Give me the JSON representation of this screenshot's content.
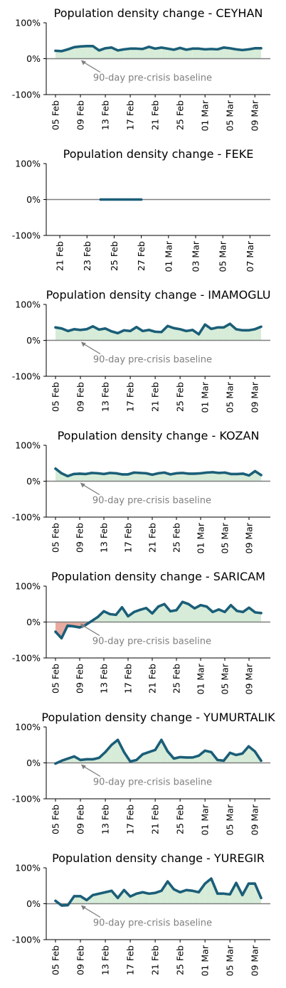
{
  "chart_data": [
    {
      "type": "area",
      "title": "Population density change - CEYHAN",
      "ylim": [
        -100,
        100
      ],
      "yticks": [
        "100%",
        "0%",
        "-100%"
      ],
      "xticks": [
        "05 Feb",
        "09 Feb",
        "13 Feb",
        "17 Feb",
        "21 Feb",
        "25 Feb",
        "01 Mar",
        "05 Mar",
        "09 Mar"
      ],
      "annotation": "90-day pre-crisis baseline",
      "x_start": "2023-02-05",
      "values": [
        22,
        21,
        26,
        32,
        34,
        35,
        35,
        23,
        29,
        31,
        23,
        26,
        28,
        28,
        27,
        33,
        28,
        31,
        28,
        25,
        30,
        25,
        28,
        28,
        26,
        27,
        26,
        31,
        29,
        26,
        24,
        26,
        29,
        29
      ]
    },
    {
      "type": "area",
      "title": "Population density change - FEKE",
      "ylim": [
        -100,
        100
      ],
      "yticks": [
        "100%",
        "0%",
        "-100%"
      ],
      "xticks": [
        "21 Feb",
        "23 Feb",
        "25 Feb",
        "27 Feb",
        "01 Mar",
        "03 Mar",
        "05 Mar",
        "07 Mar"
      ],
      "x_start": "2023-02-24",
      "values": [
        0,
        0,
        0,
        0
      ]
    },
    {
      "type": "area",
      "title": "Population density change - IMAMOGLU",
      "ylim": [
        -100,
        100
      ],
      "yticks": [
        "100%",
        "0%",
        "-100%"
      ],
      "xticks": [
        "05 Feb",
        "09 Feb",
        "13 Feb",
        "17 Feb",
        "21 Feb",
        "25 Feb",
        "01 Mar",
        "05 Mar",
        "09 Mar"
      ],
      "annotation": "90-day pre-crisis baseline",
      "x_start": "2023-02-05",
      "values": [
        36,
        33,
        26,
        31,
        29,
        31,
        39,
        30,
        33,
        25,
        20,
        28,
        26,
        37,
        26,
        29,
        24,
        23,
        40,
        34,
        31,
        26,
        29,
        17,
        44,
        32,
        36,
        36,
        46,
        31,
        28,
        28,
        31,
        38
      ]
    },
    {
      "type": "area",
      "title": "Population density change - KOZAN",
      "ylim": [
        -100,
        100
      ],
      "yticks": [
        "100%",
        "0%",
        "-100%"
      ],
      "xticks": [
        "05 Feb",
        "09 Feb",
        "13 Feb",
        "17 Feb",
        "21 Feb",
        "25 Feb",
        "01 Mar",
        "05 Mar",
        "09 Mar"
      ],
      "annotation": "90-day pre-crisis baseline",
      "x_start": "2023-02-05",
      "values": [
        35,
        22,
        14,
        20,
        21,
        20,
        23,
        22,
        20,
        23,
        22,
        19,
        19,
        24,
        23,
        22,
        18,
        22,
        24,
        19,
        22,
        23,
        21,
        21,
        22,
        24,
        25,
        23,
        24,
        20,
        20,
        21,
        16,
        28,
        17
      ]
    },
    {
      "type": "area",
      "title": "Population density change - SARICAM",
      "ylim": [
        -100,
        100
      ],
      "yticks": [
        "100%",
        "0%",
        "-100%"
      ],
      "xticks": [
        "05 Feb",
        "09 Feb",
        "13 Feb",
        "17 Feb",
        "21 Feb",
        "25 Feb",
        "01 Mar",
        "05 Mar",
        "09 Mar"
      ],
      "annotation": "90-day pre-crisis baseline",
      "x_start": "2023-02-05",
      "values": [
        -27,
        -45,
        -10,
        -12,
        -15,
        -8,
        3,
        14,
        30,
        22,
        20,
        41,
        16,
        28,
        34,
        39,
        24,
        43,
        50,
        30,
        33,
        56,
        50,
        38,
        47,
        43,
        28,
        35,
        28,
        47,
        31,
        28,
        40,
        27,
        25
      ]
    },
    {
      "type": "area",
      "title": "Population density change - YUMURTALIK",
      "ylim": [
        -100,
        100
      ],
      "yticks": [
        "100%",
        "0%",
        "-100%"
      ],
      "xticks": [
        "05 Feb",
        "09 Feb",
        "13 Feb",
        "17 Feb",
        "21 Feb",
        "25 Feb",
        "01 Mar",
        "05 Mar",
        "09 Mar"
      ],
      "annotation": "90-day pre-crisis baseline",
      "x_start": "2023-02-05",
      "values": [
        -2,
        6,
        12,
        18,
        8,
        10,
        10,
        14,
        30,
        50,
        64,
        30,
        4,
        8,
        24,
        30,
        36,
        64,
        32,
        12,
        16,
        15,
        15,
        20,
        34,
        30,
        8,
        6,
        28,
        22,
        26,
        46,
        32,
        6
      ]
    },
    {
      "type": "area",
      "title": "Population density change - YUREGIR",
      "ylim": [
        -100,
        100
      ],
      "yticks": [
        "100%",
        "0%",
        "-100%"
      ],
      "xticks": [
        "05 Feb",
        "09 Feb",
        "13 Feb",
        "17 Feb",
        "21 Feb",
        "25 Feb",
        "01 Mar",
        "05 Mar",
        "09 Mar"
      ],
      "annotation": "90-day pre-crisis baseline",
      "x_start": "2023-02-05",
      "values": [
        8,
        -5,
        -4,
        21,
        21,
        10,
        24,
        28,
        32,
        36,
        16,
        38,
        20,
        28,
        32,
        28,
        30,
        36,
        62,
        40,
        32,
        38,
        36,
        32,
        56,
        70,
        28,
        28,
        26,
        58,
        24,
        56,
        56,
        16
      ]
    }
  ],
  "colors": {
    "line": "#1b5e78",
    "positive_fill": "#d6ecd8",
    "negative_fill": "#e8aba1",
    "baseline": "#7f7f7f",
    "annotation": "#7f7f7f"
  }
}
